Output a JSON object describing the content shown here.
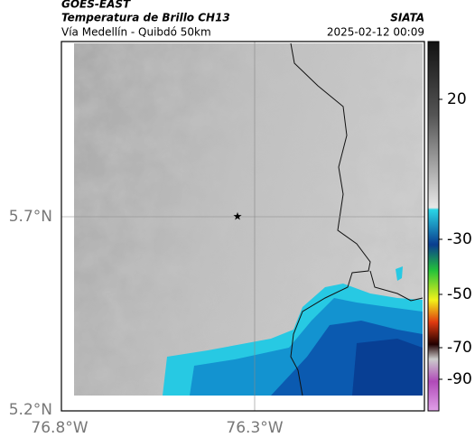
{
  "header": {
    "source": "GOES-EAST",
    "product": "Temperatura de Brillo CH13",
    "agency": "SIATA",
    "region": "Vía Medellín - Quibdó 50km",
    "timestamp": "2025-02-12 00:09"
  },
  "map": {
    "lat_labels": [
      "5.7°N",
      "5.2°N"
    ],
    "lon_labels": [
      "76.8°W",
      "76.3°W"
    ]
  },
  "colorbar": {
    "labels": [
      "20",
      "-30",
      "-50",
      "-70",
      "-90"
    ]
  }
}
